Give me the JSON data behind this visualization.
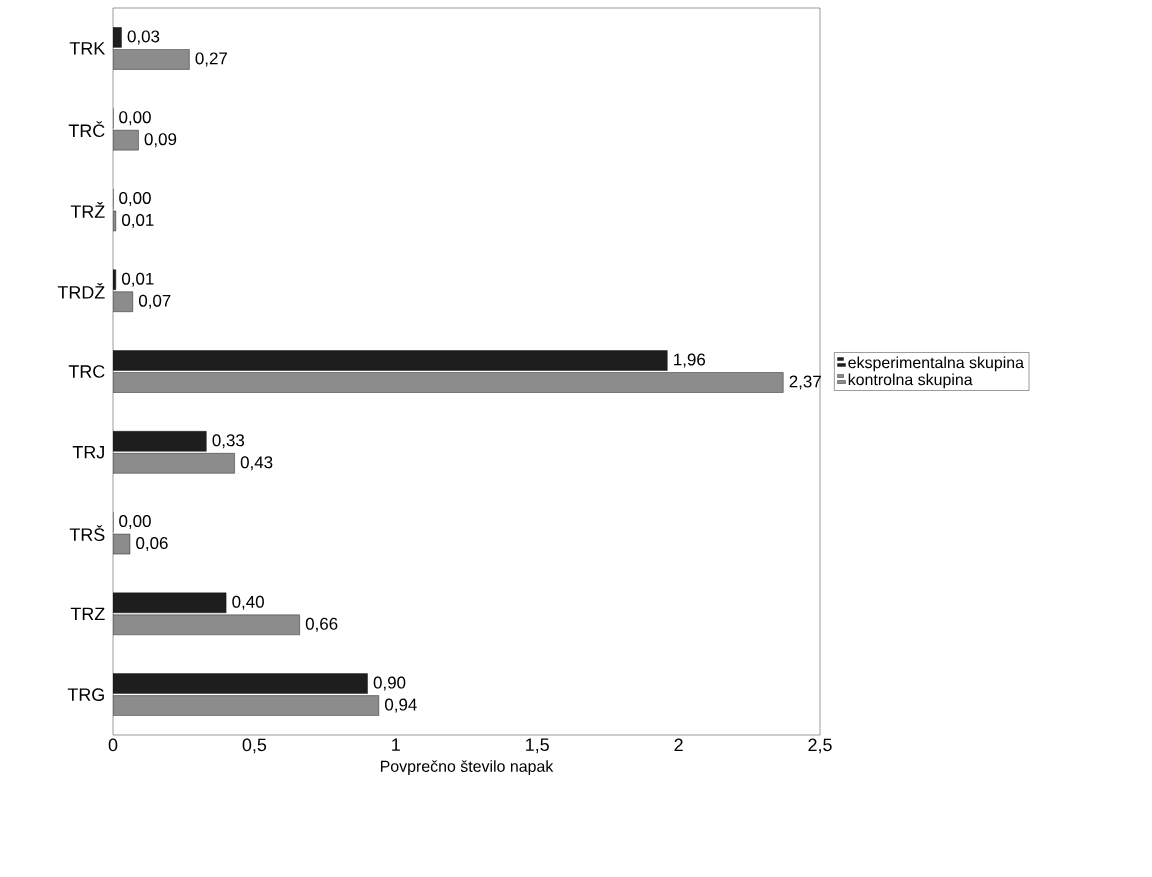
{
  "chart_data": {
    "type": "bar",
    "orientation": "horizontal",
    "xlabel": "Povprečno število napak",
    "categories": [
      "TRK",
      "TRČ",
      "TRŽ",
      "TRDŽ",
      "TRC",
      "TRJ",
      "TRŠ",
      "TRZ",
      "TRG"
    ],
    "series": [
      {
        "name": "eksperimentalna skupina",
        "color": "#1e1e1e",
        "values": [
          0.03,
          0.0,
          0.0,
          0.01,
          1.96,
          0.33,
          0.0,
          0.4,
          0.9
        ],
        "value_labels": [
          "0,03",
          "0,00",
          "0,00",
          "0,01",
          "1,96",
          "0,33",
          "0,00",
          "0,40",
          "0,90"
        ]
      },
      {
        "name": "kontrolna skupina",
        "color": "#8c8c8c",
        "values": [
          0.27,
          0.09,
          0.01,
          0.07,
          2.37,
          0.43,
          0.06,
          0.66,
          0.94
        ],
        "value_labels": [
          "0,27",
          "0,09",
          "0,01",
          "0,07",
          "2,37",
          "0,43",
          "0,06",
          "0,66",
          "0,94"
        ]
      }
    ],
    "xlim": [
      0,
      2.5
    ],
    "xticks": [
      0,
      {
        "value": 0.5,
        "label": "0,5"
      },
      1,
      {
        "value": 1.5,
        "label": "1,5"
      },
      2,
      {
        "value": 2.5,
        "label": "2,5"
      }
    ],
    "legend": "right"
  }
}
